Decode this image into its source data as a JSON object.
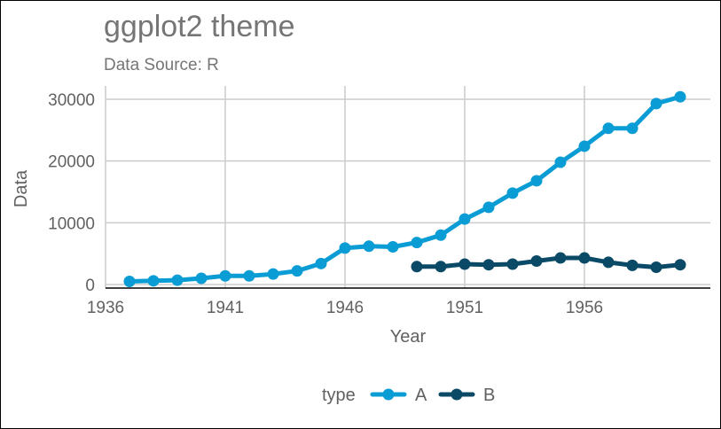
{
  "chart_data": {
    "type": "line",
    "title": "ggplot2 theme",
    "subtitle": "Data Source: R",
    "xlabel": "Year",
    "ylabel": "Data",
    "xlim": [
      1936,
      1962.5
    ],
    "ylim": [
      0,
      30500
    ],
    "xticks": [
      1936,
      1941,
      1946,
      1951,
      1956
    ],
    "yticks": [
      0,
      10000,
      20000,
      30000
    ],
    "grid": true,
    "legend": {
      "title": "type",
      "position": "bottom"
    },
    "series": [
      {
        "name": "A",
        "color": "#0a9cd4",
        "x": [
          1937,
          1938,
          1939,
          1940,
          1941,
          1942,
          1943,
          1944,
          1945,
          1946,
          1947,
          1948,
          1949,
          1950,
          1951,
          1952,
          1953,
          1954,
          1955,
          1956,
          1957,
          1958,
          1959,
          1960
        ],
        "values": [
          500,
          600,
          700,
          1000,
          1400,
          1400,
          1700,
          2200,
          3400,
          5900,
          6200,
          6100,
          6800,
          8000,
          10600,
          12500,
          14800,
          16800,
          19800,
          22400,
          25300,
          25300,
          29300,
          30400
        ]
      },
      {
        "name": "B",
        "color": "#0a4a66",
        "x": [
          1949,
          1950,
          1951,
          1952,
          1953,
          1954,
          1955,
          1956,
          1957,
          1958,
          1959,
          1960
        ],
        "values": [
          2900,
          2900,
          3300,
          3200,
          3300,
          3800,
          4300,
          4300,
          3600,
          3100,
          2800,
          3200
        ]
      }
    ]
  }
}
